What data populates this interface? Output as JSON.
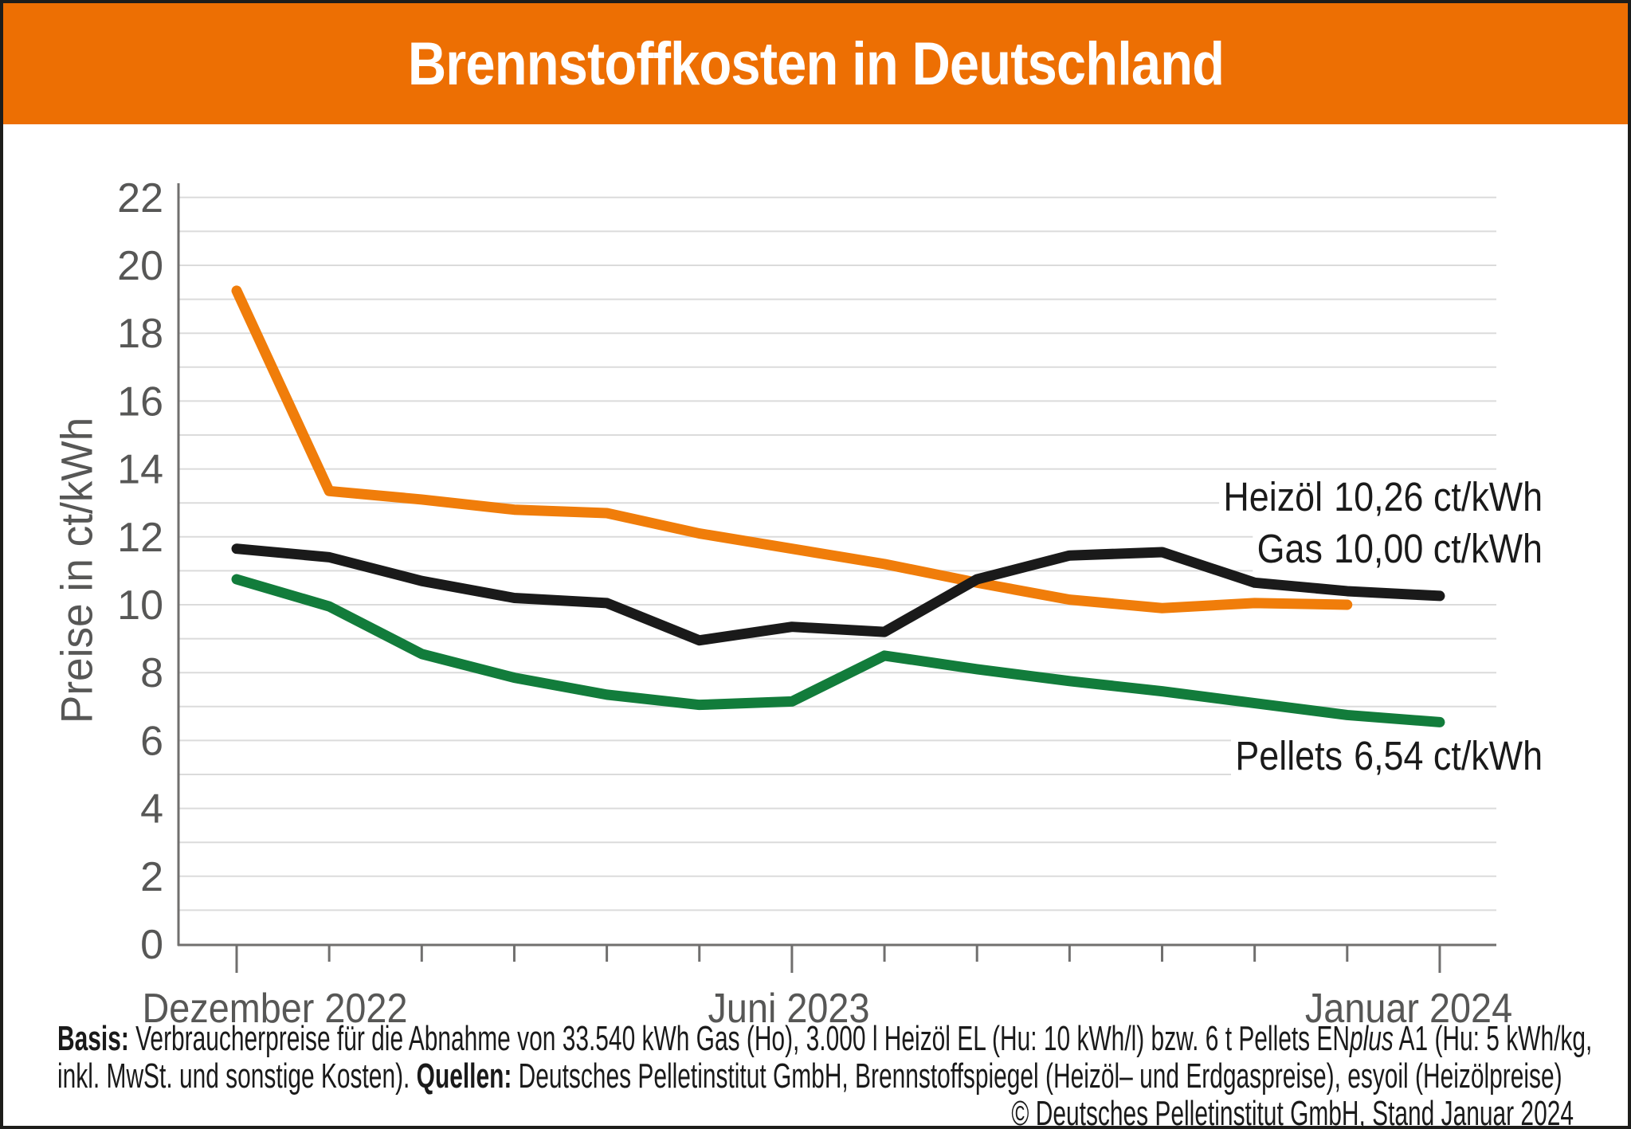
{
  "header": {
    "title": "Brennstoffkosten in Deutschland"
  },
  "colors": {
    "header_bg": "#ED6F03",
    "title_text": "#FFFFFF",
    "grid": "#DBDBDB",
    "axis": "#706F6E",
    "tick_text": "#575756",
    "label_text": "#1A1A1A",
    "gas_line": "#F07D0A",
    "heizoel_line": "#1A1A1A",
    "pellets_line": "#127C3B"
  },
  "chart_data": {
    "type": "line",
    "title": "Brennstoffkosten in Deutschland",
    "xlabel": "",
    "ylabel": "Preise in ct/kWh",
    "ylim": [
      0,
      22
    ],
    "grid": "horizontal, every 1 ct/kWh",
    "yticks_shown": [
      0,
      2,
      4,
      6,
      8,
      10,
      12,
      14,
      16,
      18,
      20,
      22
    ],
    "x": [
      "Dez 2022",
      "Jan 2023",
      "Feb 2023",
      "Mär 2023",
      "Apr 2023",
      "Mai 2023",
      "Jun 2023",
      "Jul 2023",
      "Aug 2023",
      "Sep 2023",
      "Okt 2023",
      "Nov 2023",
      "Dez 2023",
      "Jan 2024"
    ],
    "x_tick_labels": [
      {
        "label": "Dezember 2022",
        "month_index": 0
      },
      {
        "label": "Juni 2023",
        "month_index": 6
      },
      {
        "label": "Januar 2024",
        "month_index": 13
      }
    ],
    "legend_position": "inline labels at right end of lines",
    "series": [
      {
        "name": "Gas",
        "color_key": "gas_line",
        "value_label": "10,00 ct/kWh",
        "values": [
          19.25,
          13.35,
          13.1,
          12.8,
          12.7,
          12.1,
          11.65,
          11.2,
          10.65,
          10.15,
          9.9,
          10.05,
          10.0,
          null
        ]
      },
      {
        "name": "Heizöl",
        "color_key": "heizoel_line",
        "value_label": "10,26 ct/kWh",
        "values": [
          11.65,
          11.4,
          10.7,
          10.2,
          10.05,
          8.95,
          9.35,
          9.2,
          10.75,
          11.45,
          11.55,
          10.65,
          10.4,
          10.26
        ]
      },
      {
        "name": "Pellets",
        "color_key": "pellets_line",
        "value_label": "6,54 ct/kWh",
        "values": [
          10.75,
          9.95,
          8.55,
          7.85,
          7.35,
          7.05,
          7.15,
          8.5,
          8.1,
          7.75,
          7.45,
          7.1,
          6.75,
          6.54
        ]
      }
    ]
  },
  "footer": {
    "line1": [
      {
        "t": "Basis:",
        "b": true
      },
      {
        "t": " Verbraucherpreise für die Abnahme von 33.540 kWh Gas (Ho), 3.000 l Heizöl EL (Hu: 10 kWh/l) bzw. 6 t Pellets EN"
      },
      {
        "t": "plus",
        "i": true
      },
      {
        "t": " A1 (Hu: 5 kWh/kg,"
      }
    ],
    "line2": [
      {
        "t": "inkl. MwSt. und sonstige Kosten). "
      },
      {
        "t": "Quellen:",
        "b": true
      },
      {
        "t": " Deutsches Pelletinstitut GmbH, Brennstoffspiegel (Heizöl– und Erdgaspreise), esyoil (Heizölpreise)"
      }
    ],
    "line3": [
      {
        "t": "© Deutsches Pelletinstitut GmbH, Stand Januar 2024"
      }
    ]
  }
}
